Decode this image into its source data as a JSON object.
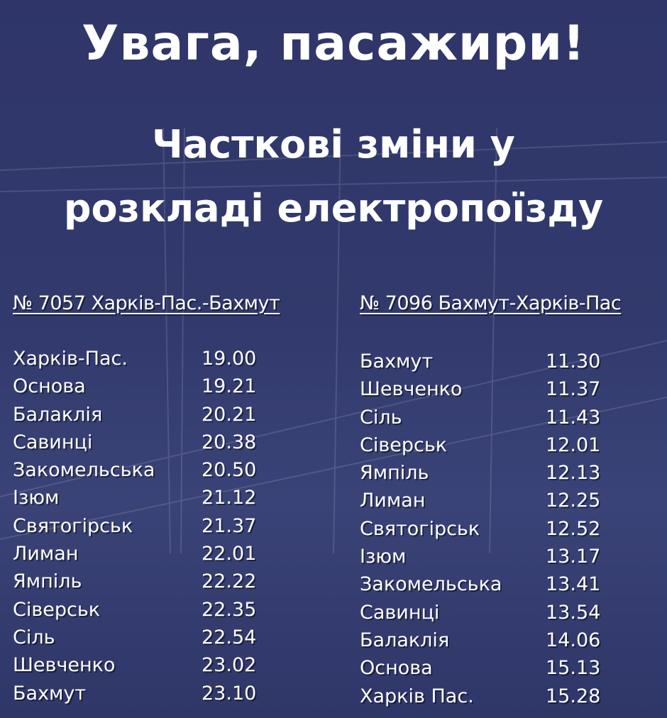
{
  "colors": {
    "background": "#2e3467",
    "text": "#ffffff"
  },
  "title": "Увага, пасажири!",
  "subtitle_line1": "Часткові зміни у",
  "subtitle_line2": "розкладі електропоїзду",
  "trains": [
    {
      "header": "№ 7057 Харків-Пас.-Бахмут",
      "stops": [
        {
          "station": "Харків-Пас.",
          "time": "19.00"
        },
        {
          "station": "Основа",
          "time": "19.21"
        },
        {
          "station": "Балаклія",
          "time": "20.21"
        },
        {
          "station": "Савинці",
          "time": "20.38"
        },
        {
          "station": "Закомельська",
          "time": "20.50"
        },
        {
          "station": "Ізюм",
          "time": "21.12"
        },
        {
          "station": "Святогірськ",
          "time": "21.37"
        },
        {
          "station": "Лиман",
          "time": "22.01"
        },
        {
          "station": "Ямпіль",
          "time": "22.22"
        },
        {
          "station": "Сіверськ",
          "time": "22.35"
        },
        {
          "station": "Сіль",
          "time": "22.54"
        },
        {
          "station": "Шевченко",
          "time": "23.02"
        },
        {
          "station": "Бахмут",
          "time": "23.10"
        }
      ]
    },
    {
      "header": "№ 7096 Бахмут-Харків-Пас",
      "stops": [
        {
          "station": "Бахмут",
          "time": "11.30"
        },
        {
          "station": "Шевченко",
          "time": "11.37"
        },
        {
          "station": "Сіль",
          "time": "11.43"
        },
        {
          "station": "Сіверськ",
          "time": "12.01"
        },
        {
          "station": "Ямпіль",
          "time": "12.13"
        },
        {
          "station": "Лиман",
          "time": "12.25"
        },
        {
          "station": "Святогірськ",
          "time": "12.52"
        },
        {
          "station": "Ізюм",
          "time": "13.17"
        },
        {
          "station": "Закомельська",
          "time": "13.41"
        },
        {
          "station": "Савинці",
          "time": "13.54"
        },
        {
          "station": "Балаклія",
          "time": "14.06"
        },
        {
          "station": "Основа",
          "time": "15.13"
        },
        {
          "station": "Харків Пас.",
          "time": "15.28"
        }
      ]
    }
  ]
}
